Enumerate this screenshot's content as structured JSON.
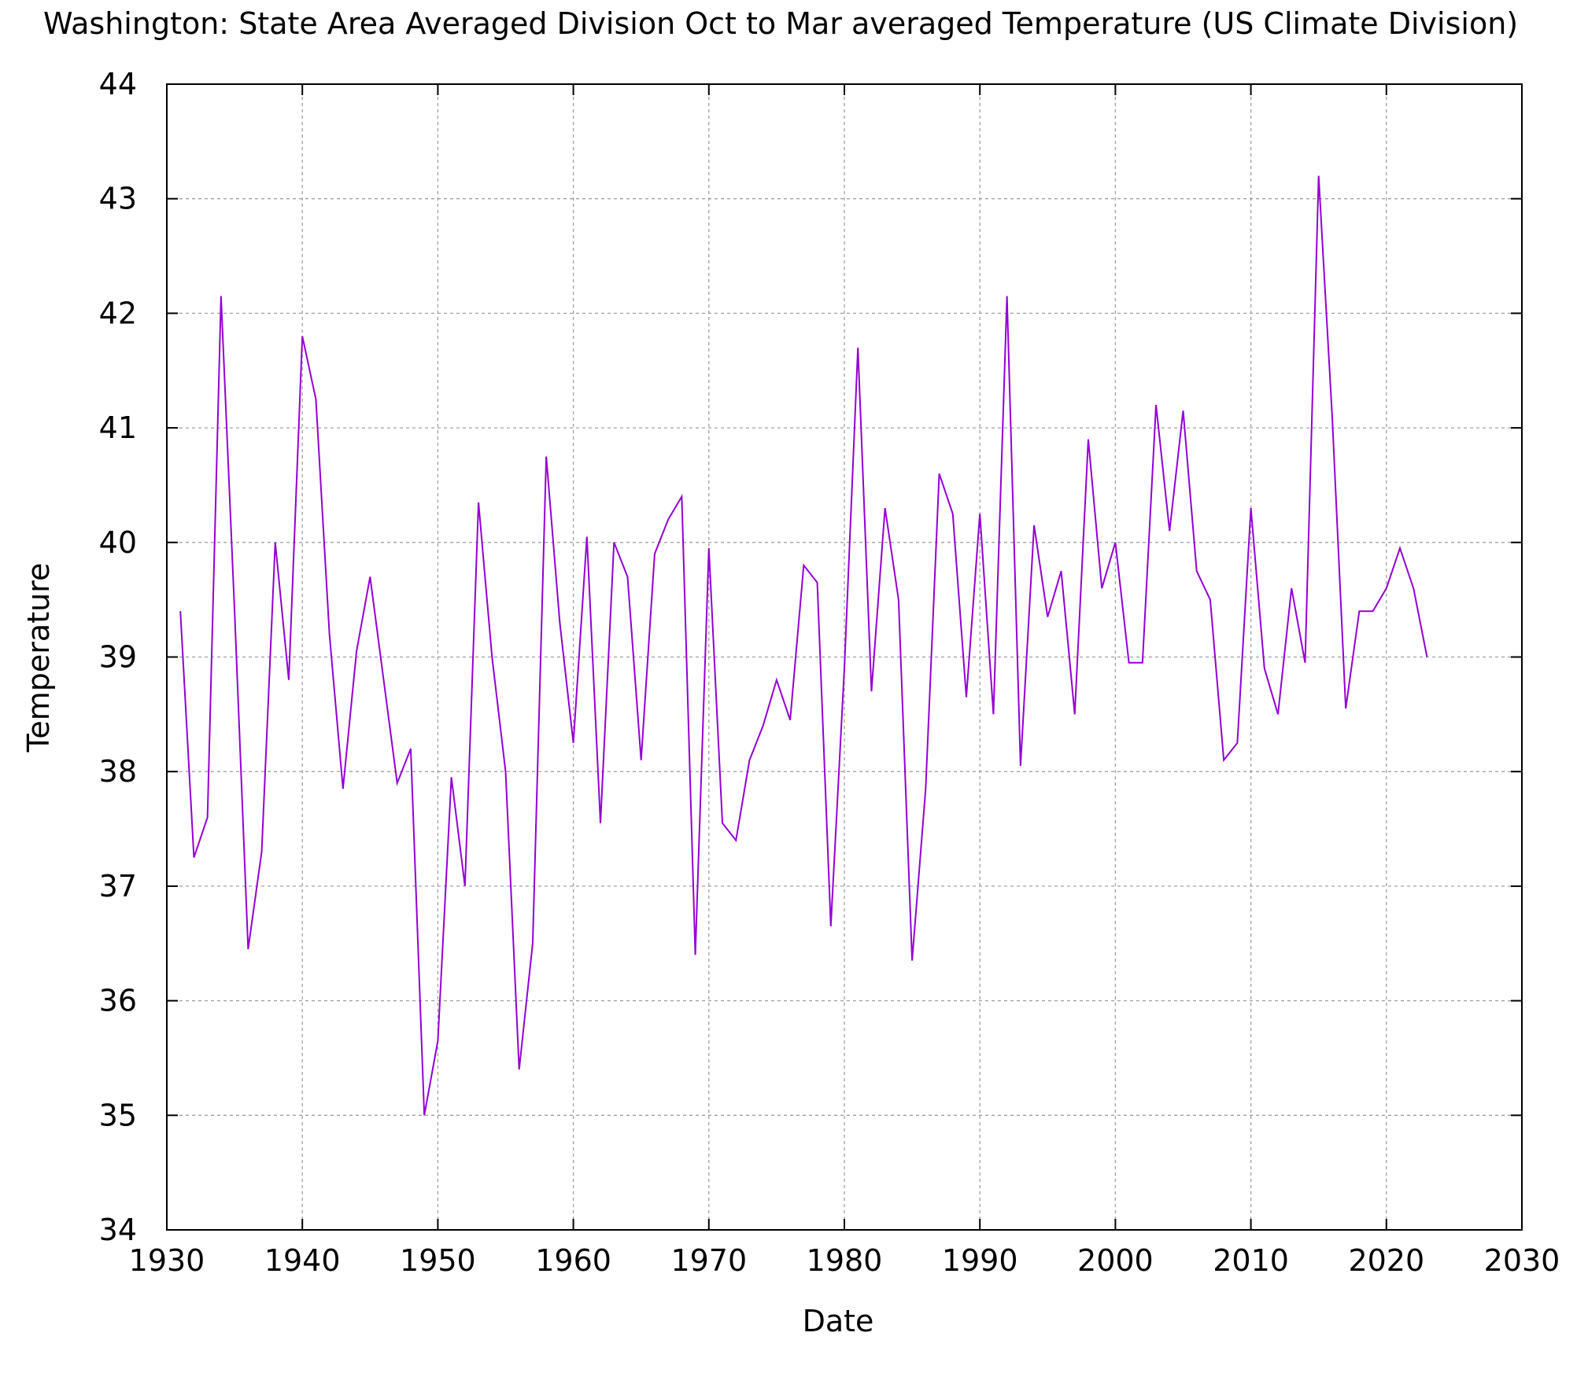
{
  "chart_data": {
    "type": "line",
    "title": "Washington: State Area Averaged Division  Oct to Mar averaged Temperature  (US Climate Division)",
    "xlabel": "Date",
    "ylabel": "Temperature",
    "xlim": [
      1930,
      2030
    ],
    "ylim": [
      34,
      44
    ],
    "xticks": [
      1930,
      1940,
      1950,
      1960,
      1970,
      1980,
      1990,
      2000,
      2010,
      2020,
      2030
    ],
    "yticks": [
      34,
      35,
      36,
      37,
      38,
      39,
      40,
      41,
      42,
      43,
      44
    ],
    "grid": true,
    "series": [
      {
        "name": "Temperature",
        "color": "#9400d3",
        "x": [
          1931,
          1932,
          1933,
          1934,
          1935,
          1936,
          1937,
          1938,
          1939,
          1940,
          1941,
          1942,
          1943,
          1944,
          1945,
          1946,
          1947,
          1948,
          1949,
          1950,
          1951,
          1952,
          1953,
          1954,
          1955,
          1956,
          1957,
          1958,
          1959,
          1960,
          1961,
          1962,
          1963,
          1964,
          1965,
          1966,
          1967,
          1968,
          1969,
          1970,
          1971,
          1972,
          1973,
          1974,
          1975,
          1976,
          1977,
          1978,
          1979,
          1980,
          1981,
          1982,
          1983,
          1984,
          1985,
          1986,
          1987,
          1988,
          1989,
          1990,
          1991,
          1992,
          1993,
          1994,
          1995,
          1996,
          1997,
          1998,
          1999,
          2000,
          2001,
          2002,
          2003,
          2004,
          2005,
          2006,
          2007,
          2008,
          2009,
          2010,
          2011,
          2012,
          2013,
          2014,
          2015,
          2016,
          2017,
          2018,
          2019,
          2020,
          2021,
          2022,
          2023
        ],
        "values": [
          39.4,
          37.25,
          37.6,
          42.15,
          39.4,
          36.45,
          37.3,
          40.0,
          38.8,
          41.8,
          41.25,
          39.2,
          37.85,
          39.05,
          39.7,
          38.8,
          37.9,
          38.2,
          35.0,
          35.65,
          37.95,
          37.0,
          40.35,
          39.0,
          38.0,
          35.4,
          36.5,
          40.75,
          39.3,
          38.25,
          40.05,
          37.55,
          40.0,
          39.7,
          38.1,
          39.9,
          40.2,
          40.4,
          36.4,
          39.95,
          37.55,
          37.4,
          38.1,
          38.4,
          38.8,
          38.45,
          39.8,
          39.65,
          36.65,
          38.9,
          41.7,
          38.7,
          40.3,
          39.5,
          36.35,
          37.85,
          40.6,
          40.25,
          38.65,
          40.25,
          38.5,
          42.15,
          38.05,
          40.15,
          39.35,
          39.75,
          38.5,
          40.9,
          39.6,
          40.0,
          38.95,
          38.95,
          41.2,
          40.1,
          41.15,
          39.75,
          39.5,
          38.1,
          38.25,
          40.3,
          38.9,
          38.5,
          39.6,
          38.95,
          43.2,
          41.1,
          38.55,
          39.4,
          39.4,
          39.6,
          39.95,
          39.6,
          39.0
        ]
      }
    ]
  }
}
